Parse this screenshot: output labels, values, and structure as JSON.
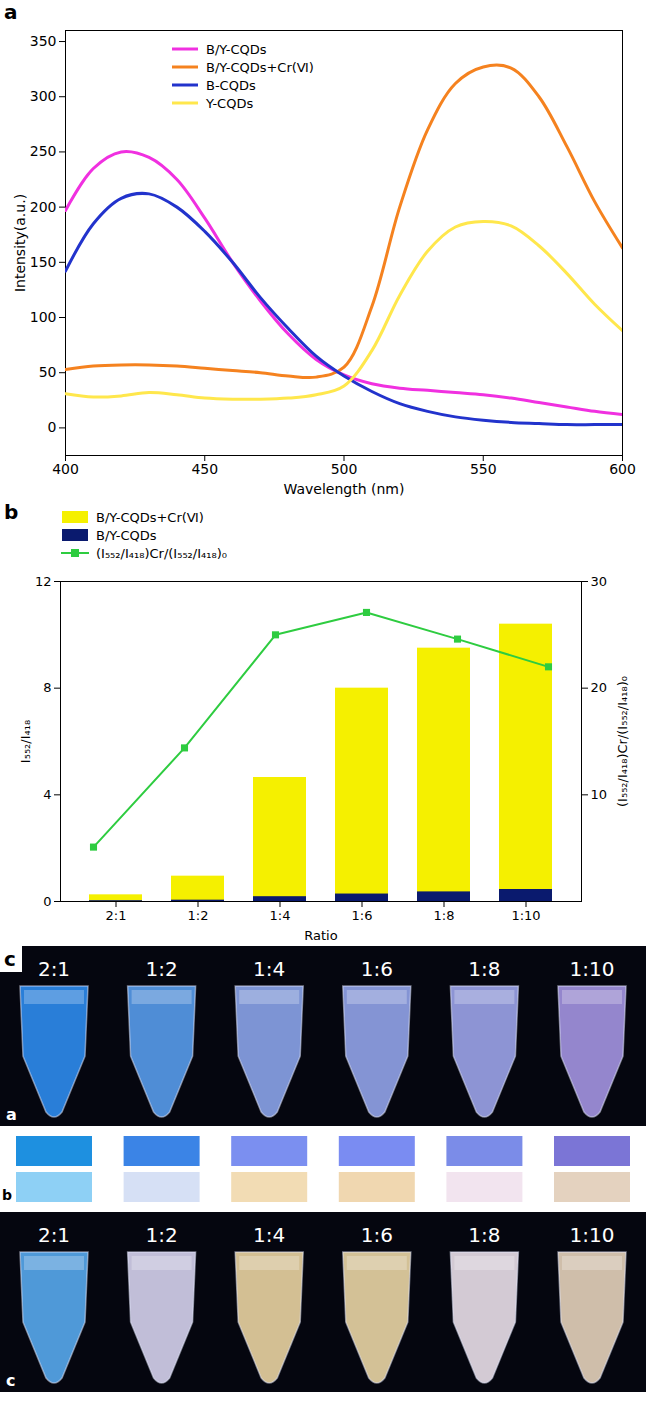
{
  "chart_data": [
    {
      "type": "line",
      "panel_label": "a",
      "x_label": "Wavelength (nm)",
      "y_label": "Intensity(a.u.)",
      "x": [
        400,
        410,
        420,
        430,
        440,
        450,
        460,
        470,
        480,
        490,
        500,
        510,
        520,
        530,
        540,
        550,
        560,
        570,
        580,
        590,
        600
      ],
      "xlim": [
        400,
        600
      ],
      "xticks": [
        400,
        450,
        500,
        550,
        600
      ],
      "ylim": [
        -25,
        360
      ],
      "yticks": [
        0,
        50,
        100,
        150,
        200,
        250,
        300,
        350
      ],
      "legend": "top",
      "series": [
        {
          "name": "B/Y-CQDs",
          "color": "#f030e0",
          "values": [
            197,
            235,
            250,
            245,
            225,
            190,
            150,
            115,
            85,
            62,
            48,
            40,
            36,
            34,
            32,
            30,
            27,
            23,
            19,
            15,
            12
          ]
        },
        {
          "name": "B/Y-CQDs+Cr(Ⅵ)",
          "color": "#f5821f",
          "values": [
            53,
            56,
            57,
            57,
            56,
            54,
            52,
            50,
            47,
            46,
            55,
            110,
            200,
            270,
            312,
            327,
            326,
            300,
            255,
            205,
            163
          ]
        },
        {
          "name": "B-CQDs",
          "color": "#2233cc",
          "values": [
            142,
            185,
            208,
            212,
            200,
            178,
            150,
            118,
            90,
            65,
            47,
            33,
            22,
            15,
            10,
            7,
            5,
            4,
            3,
            3,
            3
          ]
        },
        {
          "name": "Y-CQDs",
          "color": "#ffe74c",
          "values": [
            31,
            28,
            29,
            32,
            30,
            27,
            26,
            26,
            27,
            30,
            38,
            70,
            120,
            160,
            182,
            187,
            183,
            165,
            140,
            112,
            88
          ]
        }
      ]
    },
    {
      "type": "bar",
      "panel_label": "b",
      "x_label": "Ratio",
      "y_label": "I₅₅₂/I₄₁₈",
      "y2_label": "(I₅₅₂/I₄₁₈)Cr/(I₅₅₂/I₄₁₈)₀",
      "categories": [
        "2:1",
        "1:2",
        "1:4",
        "1:6",
        "1:8",
        "1:10"
      ],
      "ylim": [
        0,
        12
      ],
      "yticks": [
        0,
        4,
        8,
        12
      ],
      "y2lim": [
        0,
        30
      ],
      "y2ticks": [
        10,
        20,
        30
      ],
      "stacked": false,
      "legend": "top",
      "series": [
        {
          "name": "B/Y-CQDs+Cr(Ⅵ)",
          "type": "bar",
          "color": "#f5f000",
          "values": [
            0.25,
            0.95,
            4.65,
            8.0,
            9.5,
            10.4
          ]
        },
        {
          "name": "B/Y-CQDs",
          "type": "bar",
          "color": "#0a1a6e",
          "values": [
            0.03,
            0.05,
            0.18,
            0.28,
            0.36,
            0.45
          ]
        },
        {
          "name": "(I₅₅₂/I₄₁₈)Cr/(I₅₅₂/I₄₁₈)₀",
          "type": "line",
          "axis": "y2",
          "color": "#2ecc40",
          "marker": "square",
          "values": [
            5.1,
            14.4,
            25.0,
            27.1,
            24.6,
            22.0
          ]
        }
      ]
    }
  ],
  "photo_panel": {
    "panel_label": "c",
    "ratios": [
      "2:1",
      "1:2",
      "1:4",
      "1:6",
      "1:8",
      "1:10"
    ],
    "top_photo": {
      "label": "a",
      "tube_colors": [
        "#2f8ff5",
        "#5aa0f2",
        "#8ea8f0",
        "#96a8f0",
        "#a0a8f0",
        "#a898e8"
      ]
    },
    "swatches": {
      "label": "b",
      "rows": [
        [
          "#1e90e0",
          "#3b84e6",
          "#7b8ff0",
          "#7a8cf2",
          "#7b8ce8",
          "#7b75d6"
        ],
        [
          "#8ed0f5",
          "#d6e0f5",
          "#f2dcb4",
          "#f0d7b0",
          "#f2e4ef",
          "#e4d2bf"
        ]
      ]
    },
    "bottom_photo": {
      "label": "c",
      "tube_colors": [
        "#5aaef5",
        "#dcd8f5",
        "#f0d9a6",
        "#f0dcaa",
        "#f0e6f0",
        "#ecd8c0"
      ]
    }
  }
}
